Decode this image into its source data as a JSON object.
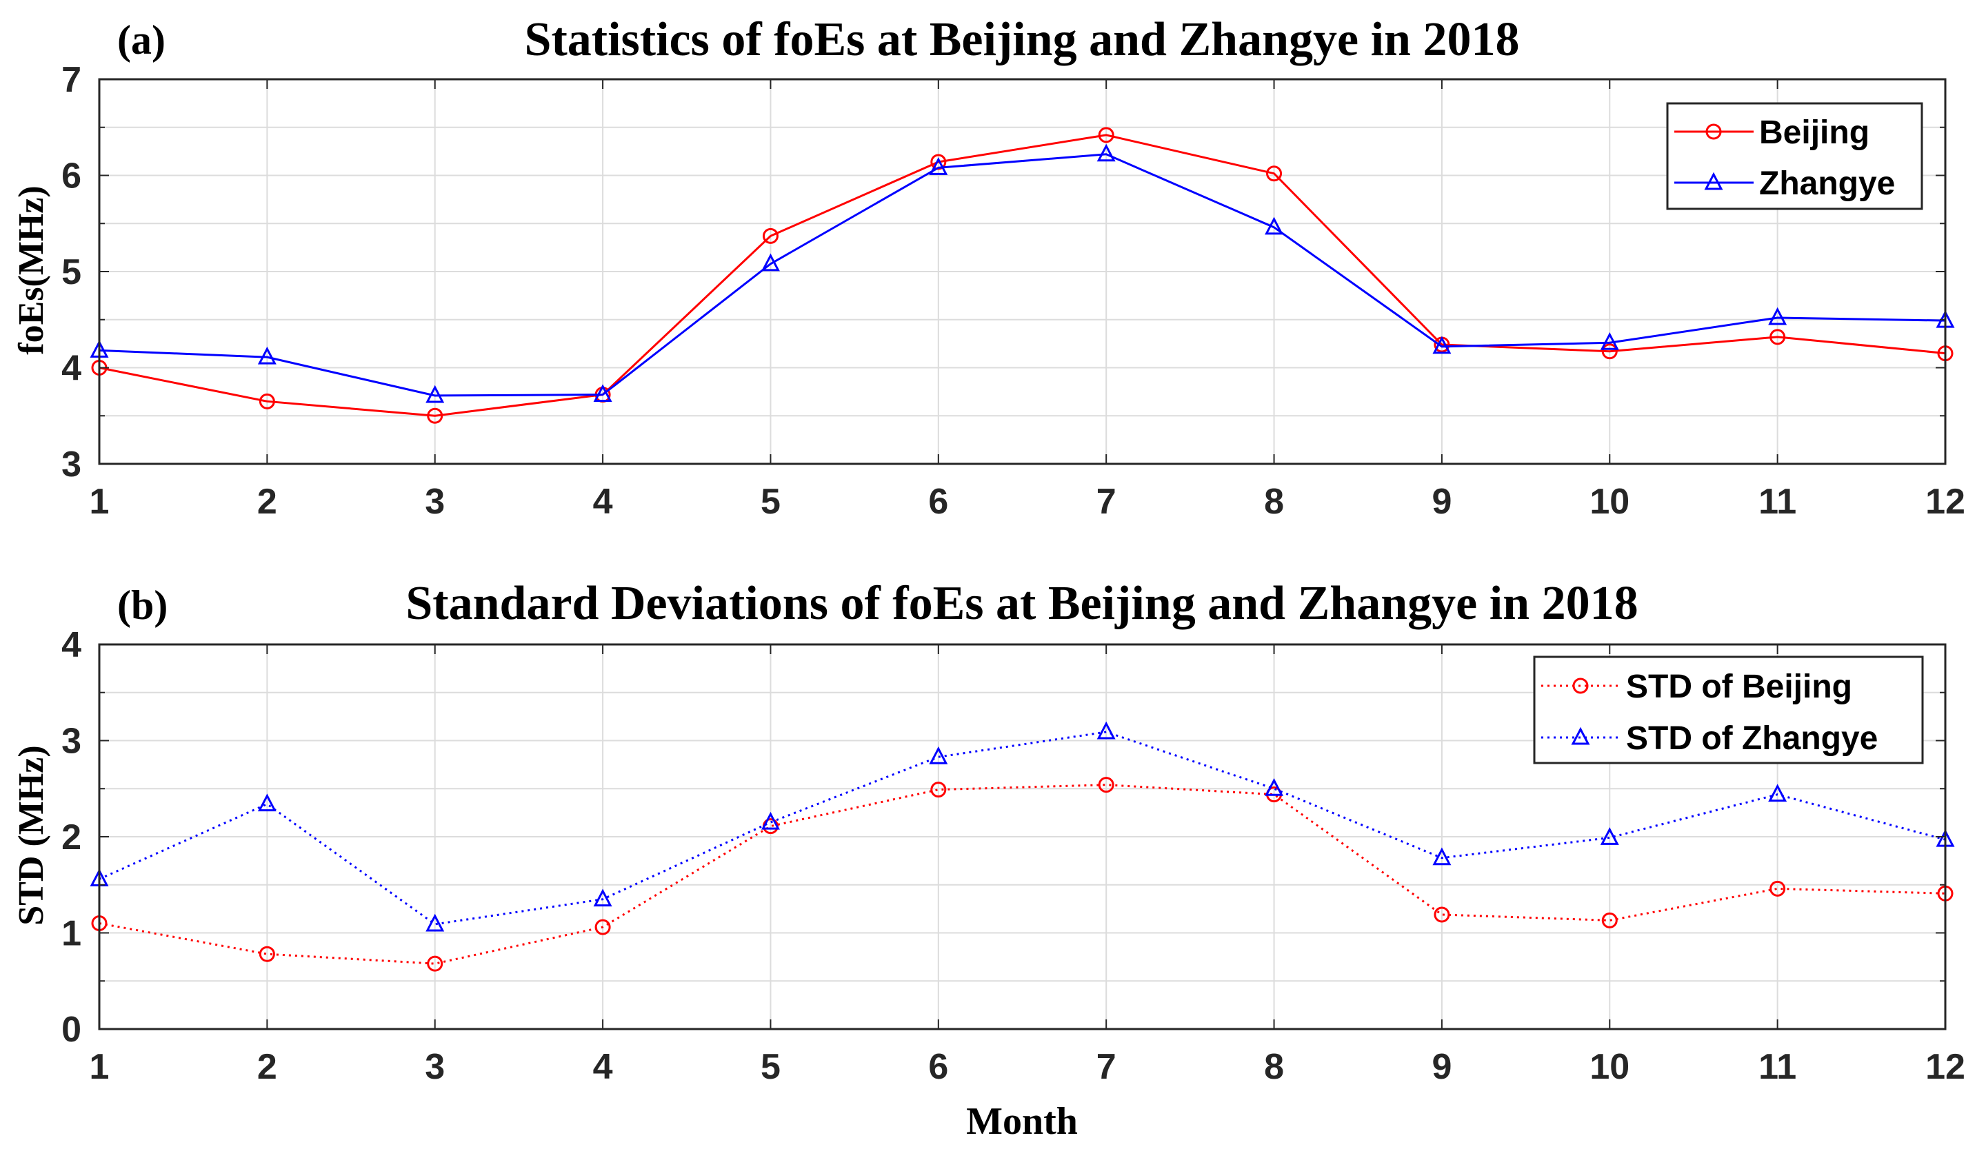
{
  "chart_data": [
    {
      "type": "line",
      "panel_label": "(a)",
      "title": "Statistics of foEs at Beijing and Zhangye in 2018",
      "xlabel": "",
      "ylabel": "foEs(MHz)",
      "xlim": [
        1,
        12
      ],
      "ylim": [
        3,
        7
      ],
      "x": [
        1,
        2,
        3,
        4,
        5,
        6,
        7,
        8,
        9,
        10,
        11,
        12
      ],
      "xticks": [
        "1",
        "2",
        "3",
        "4",
        "5",
        "6",
        "7",
        "8",
        "9",
        "10",
        "11",
        "12"
      ],
      "yticks": [
        "3",
        "4",
        "5",
        "6",
        "7"
      ],
      "grid": true,
      "legend_position": "top-right",
      "series": [
        {
          "name": "Beijing",
          "color": "#ff0000",
          "marker": "circle",
          "line_style": "solid",
          "values": [
            4.0,
            3.65,
            3.5,
            3.72,
            5.37,
            6.14,
            6.42,
            6.02,
            4.24,
            4.17,
            4.32,
            4.15
          ]
        },
        {
          "name": "Zhangye",
          "color": "#0000ff",
          "marker": "triangle",
          "line_style": "solid",
          "values": [
            4.18,
            4.11,
            3.71,
            3.72,
            5.08,
            6.08,
            6.22,
            5.46,
            4.22,
            4.26,
            4.52,
            4.49
          ]
        }
      ]
    },
    {
      "type": "line",
      "panel_label": "(b)",
      "title": "Standard Deviations of foEs at Beijing and Zhangye in 2018",
      "xlabel": "Month",
      "ylabel": "STD (MHz)",
      "xlim": [
        1,
        12
      ],
      "ylim": [
        0,
        4
      ],
      "x": [
        1,
        2,
        3,
        4,
        5,
        6,
        7,
        8,
        9,
        10,
        11,
        12
      ],
      "xticks": [
        "1",
        "2",
        "3",
        "4",
        "5",
        "6",
        "7",
        "8",
        "9",
        "10",
        "11",
        "12"
      ],
      "yticks": [
        "0",
        "1",
        "2",
        "3",
        "4"
      ],
      "grid": true,
      "legend_position": "top-right",
      "series": [
        {
          "name": "STD of Beijing",
          "color": "#ff0000",
          "marker": "circle",
          "line_style": "dotted",
          "values": [
            1.1,
            0.78,
            0.68,
            1.06,
            2.11,
            2.49,
            2.54,
            2.44,
            1.19,
            1.13,
            1.46,
            1.41
          ]
        },
        {
          "name": "STD of Zhangye",
          "color": "#0000ff",
          "marker": "triangle",
          "line_style": "dotted",
          "values": [
            1.56,
            2.34,
            1.09,
            1.35,
            2.15,
            2.83,
            3.09,
            2.5,
            1.78,
            1.99,
            2.44,
            1.97
          ]
        }
      ]
    }
  ]
}
